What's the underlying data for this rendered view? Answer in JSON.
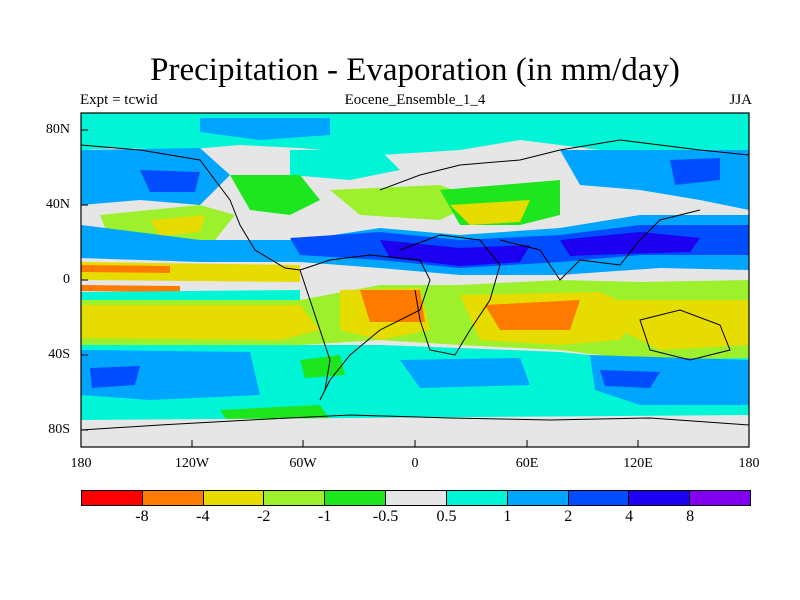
{
  "title": "Precipitation - Evaporation (in mm/day)",
  "left_header": "Expt = tcwid",
  "center_header": "Eocene_Ensemble_1_4",
  "right_header": "JJA",
  "x_ticks": [
    "180",
    "120W",
    "60W",
    "0",
    "60E",
    "120E",
    "180"
  ],
  "y_ticks": [
    "80N",
    "40N",
    "0",
    "40S",
    "80S"
  ],
  "colorbar": {
    "labels": [
      "-8",
      "-4",
      "-2",
      "-1",
      "-0.5",
      "0.5",
      "1",
      "2",
      "4",
      "8"
    ],
    "colors": [
      "#ff0000",
      "#ff7a00",
      "#e6dc00",
      "#9cf02c",
      "#1ee61e",
      "#e6e6e6",
      "#00f5d7",
      "#00a5ff",
      "#004cff",
      "#1e00f0",
      "#8200f0"
    ]
  },
  "fill_colors": {
    "dry_strong": "#ff7a00",
    "dry_moderate": "#e6dc00",
    "dry_light": "#9cf02c",
    "dry_weak": "#1ee61e",
    "neutral": "#e6e6e6",
    "wet_weak": "#00f5d7",
    "wet_light": "#00a5ff",
    "wet_moderate": "#004cff",
    "wet_strong": "#1e00f0"
  }
}
